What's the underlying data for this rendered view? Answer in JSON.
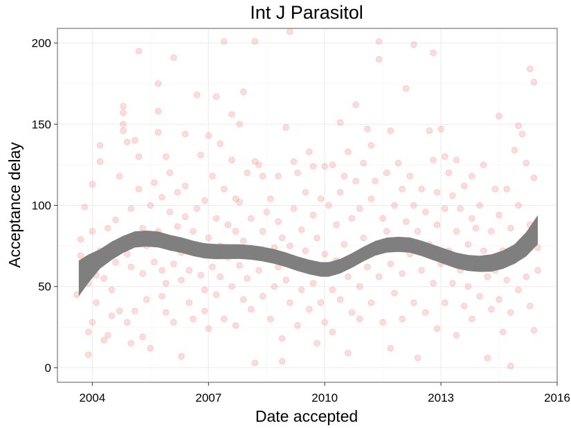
{
  "chart_data": {
    "type": "scatter",
    "title": "Int J Parasitol",
    "xlabel": "Date accepted",
    "ylabel": "Acceptance delay",
    "xlim": [
      2003.1,
      2016.0
    ],
    "ylim": [
      -9,
      209
    ],
    "x_ticks": [
      {
        "value": 2004,
        "label": "2004"
      },
      {
        "value": 2007,
        "label": "2007"
      },
      {
        "value": 2010,
        "label": "2010"
      },
      {
        "value": 2013,
        "label": "2013"
      },
      {
        "value": 2016,
        "label": "2016"
      }
    ],
    "y_ticks": [
      {
        "value": 0,
        "label": "0"
      },
      {
        "value": 50,
        "label": "50"
      },
      {
        "value": 100,
        "label": "100"
      },
      {
        "value": 150,
        "label": "150"
      },
      {
        "value": 200,
        "label": "200"
      }
    ],
    "grid": true,
    "point_color": "#f8766d",
    "point_opacity": 0.25,
    "smooth_color": "#7f7f7f",
    "points": [
      [
        2003.6,
        45
      ],
      [
        2003.7,
        69
      ],
      [
        2003.7,
        79
      ],
      [
        2003.8,
        99
      ],
      [
        2003.8,
        62
      ],
      [
        2003.9,
        8
      ],
      [
        2003.9,
        22
      ],
      [
        2003.9,
        52
      ],
      [
        2004.0,
        113
      ],
      [
        2004.0,
        28
      ],
      [
        2004.0,
        84
      ],
      [
        2004.1,
        57
      ],
      [
        2004.1,
        40
      ],
      [
        2004.2,
        137
      ],
      [
        2004.2,
        127
      ],
      [
        2004.2,
        72
      ],
      [
        2004.3,
        55
      ],
      [
        2004.3,
        17
      ],
      [
        2004.4,
        20
      ],
      [
        2004.4,
        86
      ],
      [
        2004.5,
        48
      ],
      [
        2004.5,
        32
      ],
      [
        2004.6,
        65
      ],
      [
        2004.6,
        91
      ],
      [
        2004.7,
        118
      ],
      [
        2004.7,
        35
      ],
      [
        2004.8,
        161
      ],
      [
        2004.8,
        157
      ],
      [
        2004.8,
        150
      ],
      [
        2004.8,
        146
      ],
      [
        2004.9,
        28
      ],
      [
        2004.9,
        70
      ],
      [
        2004.9,
        139
      ],
      [
        2005.0,
        98
      ],
      [
        2005.0,
        15
      ],
      [
        2005.0,
        62
      ],
      [
        2005.1,
        140
      ],
      [
        2005.1,
        35
      ],
      [
        2005.2,
        195
      ],
      [
        2005.2,
        130
      ],
      [
        2005.2,
        110
      ],
      [
        2005.3,
        58
      ],
      [
        2005.3,
        86
      ],
      [
        2005.3,
        19
      ],
      [
        2005.4,
        42
      ],
      [
        2005.4,
        75
      ],
      [
        2005.5,
        100
      ],
      [
        2005.5,
        12
      ],
      [
        2005.6,
        114
      ],
      [
        2005.6,
        65
      ],
      [
        2005.7,
        175
      ],
      [
        2005.7,
        145
      ],
      [
        2005.7,
        158
      ],
      [
        2005.7,
        84
      ],
      [
        2005.8,
        105
      ],
      [
        2005.8,
        60
      ],
      [
        2005.8,
        44
      ],
      [
        2005.9,
        130
      ],
      [
        2005.9,
        52
      ],
      [
        2005.9,
        34
      ],
      [
        2006.0,
        120
      ],
      [
        2006.0,
        77
      ],
      [
        2006.0,
        96
      ],
      [
        2006.1,
        191
      ],
      [
        2006.1,
        64
      ],
      [
        2006.1,
        28
      ],
      [
        2006.2,
        108
      ],
      [
        2006.2,
        87
      ],
      [
        2006.3,
        7
      ],
      [
        2006.3,
        54
      ],
      [
        2006.3,
        71
      ],
      [
        2006.4,
        144
      ],
      [
        2006.4,
        112
      ],
      [
        2006.4,
        93
      ],
      [
        2006.5,
        40
      ],
      [
        2006.5,
        60
      ],
      [
        2006.6,
        84
      ],
      [
        2006.6,
        30
      ],
      [
        2006.7,
        168
      ],
      [
        2006.7,
        98
      ],
      [
        2006.8,
        57
      ],
      [
        2006.8,
        131
      ],
      [
        2006.8,
        72
      ],
      [
        2006.9,
        48
      ],
      [
        2006.9,
        103
      ],
      [
        2006.9,
        35
      ],
      [
        2007.0,
        143
      ],
      [
        2007.0,
        80
      ],
      [
        2007.0,
        24
      ],
      [
        2007.1,
        118
      ],
      [
        2007.1,
        62
      ],
      [
        2007.2,
        167
      ],
      [
        2007.2,
        92
      ],
      [
        2007.2,
        45
      ],
      [
        2007.3,
        138
      ],
      [
        2007.3,
        75
      ],
      [
        2007.3,
        56
      ],
      [
        2007.4,
        201
      ],
      [
        2007.4,
        110
      ],
      [
        2007.4,
        30
      ],
      [
        2007.5,
        88
      ],
      [
        2007.5,
        68
      ],
      [
        2007.6,
        156
      ],
      [
        2007.6,
        128
      ],
      [
        2007.6,
        50
      ],
      [
        2007.7,
        104
      ],
      [
        2007.7,
        84
      ],
      [
        2007.7,
        26
      ],
      [
        2007.8,
        150
      ],
      [
        2007.8,
        102
      ],
      [
        2007.8,
        63
      ],
      [
        2007.9,
        170
      ],
      [
        2007.9,
        42
      ],
      [
        2007.9,
        78
      ],
      [
        2008.0,
        120
      ],
      [
        2008.0,
        55
      ],
      [
        2008.1,
        92
      ],
      [
        2008.1,
        36
      ],
      [
        2008.1,
        70
      ],
      [
        2008.2,
        201
      ],
      [
        2008.2,
        127
      ],
      [
        2008.2,
        3
      ],
      [
        2008.3,
        125
      ],
      [
        2008.3,
        60
      ],
      [
        2008.4,
        84
      ],
      [
        2008.4,
        118
      ],
      [
        2008.4,
        44
      ],
      [
        2008.5,
        96
      ],
      [
        2008.5,
        68
      ],
      [
        2008.6,
        104
      ],
      [
        2008.6,
        30
      ],
      [
        2008.7,
        74
      ],
      [
        2008.7,
        50
      ],
      [
        2008.8,
        118
      ],
      [
        2008.8,
        90
      ],
      [
        2008.8,
        62
      ],
      [
        2008.9,
        4
      ],
      [
        2008.9,
        18
      ],
      [
        2008.9,
        80
      ],
      [
        2009.0,
        148
      ],
      [
        2009.0,
        54
      ],
      [
        2009.1,
        207
      ],
      [
        2009.1,
        75
      ],
      [
        2009.1,
        40
      ],
      [
        2009.2,
        127
      ],
      [
        2009.2,
        98
      ],
      [
        2009.3,
        120
      ],
      [
        2009.3,
        65
      ],
      [
        2009.3,
        26
      ],
      [
        2009.4,
        85
      ],
      [
        2009.4,
        48
      ],
      [
        2009.5,
        108
      ],
      [
        2009.5,
        72
      ],
      [
        2009.6,
        133
      ],
      [
        2009.6,
        60
      ],
      [
        2009.6,
        36
      ],
      [
        2009.7,
        124
      ],
      [
        2009.7,
        94
      ],
      [
        2009.7,
        52
      ],
      [
        2009.8,
        80
      ],
      [
        2009.8,
        15
      ],
      [
        2009.9,
        104
      ],
      [
        2009.9,
        58
      ],
      [
        2009.9,
        40
      ],
      [
        2010.0,
        124
      ],
      [
        2010.0,
        70
      ],
      [
        2010.0,
        28
      ],
      [
        2010.1,
        100
      ],
      [
        2010.1,
        60
      ],
      [
        2010.2,
        125
      ],
      [
        2010.2,
        48
      ],
      [
        2010.2,
        22
      ],
      [
        2010.3,
        88
      ],
      [
        2010.3,
        66
      ],
      [
        2010.4,
        151
      ],
      [
        2010.4,
        108
      ],
      [
        2010.4,
        42
      ],
      [
        2010.5,
        118
      ],
      [
        2010.5,
        76
      ],
      [
        2010.6,
        133
      ],
      [
        2010.6,
        9
      ],
      [
        2010.6,
        56
      ],
      [
        2010.7,
        92
      ],
      [
        2010.7,
        34
      ],
      [
        2010.8,
        162
      ],
      [
        2010.8,
        115
      ],
      [
        2010.8,
        68
      ],
      [
        2010.9,
        98
      ],
      [
        2010.9,
        50
      ],
      [
        2010.9,
        30
      ],
      [
        2011.0,
        126
      ],
      [
        2011.0,
        80
      ],
      [
        2011.1,
        147
      ],
      [
        2011.1,
        62
      ],
      [
        2011.2,
        137
      ],
      [
        2011.2,
        104
      ],
      [
        2011.2,
        40
      ],
      [
        2011.3,
        115
      ],
      [
        2011.3,
        72
      ],
      [
        2011.4,
        190
      ],
      [
        2011.4,
        201
      ],
      [
        2011.4,
        56
      ],
      [
        2011.5,
        92
      ],
      [
        2011.5,
        28
      ],
      [
        2011.6,
        120
      ],
      [
        2011.6,
        84
      ],
      [
        2011.7,
        146
      ],
      [
        2011.7,
        64
      ],
      [
        2011.7,
        12
      ],
      [
        2011.8,
        100
      ],
      [
        2011.8,
        46
      ],
      [
        2011.9,
        126
      ],
      [
        2011.9,
        74
      ],
      [
        2012.0,
        110
      ],
      [
        2012.0,
        58
      ],
      [
        2012.0,
        30
      ],
      [
        2012.1,
        172
      ],
      [
        2012.1,
        90
      ],
      [
        2012.2,
        118
      ],
      [
        2012.2,
        70
      ],
      [
        2012.3,
        199
      ],
      [
        2012.3,
        100
      ],
      [
        2012.3,
        40
      ],
      [
        2012.4,
        84
      ],
      [
        2012.4,
        6
      ],
      [
        2012.5,
        110
      ],
      [
        2012.5,
        60
      ],
      [
        2012.6,
        96
      ],
      [
        2012.6,
        34
      ],
      [
        2012.7,
        146
      ],
      [
        2012.7,
        76
      ],
      [
        2012.8,
        194
      ],
      [
        2012.8,
        128
      ],
      [
        2012.8,
        52
      ],
      [
        2012.9,
        108
      ],
      [
        2012.9,
        88
      ],
      [
        2012.9,
        24
      ],
      [
        2013.0,
        147
      ],
      [
        2013.0,
        64
      ],
      [
        2013.1,
        130
      ],
      [
        2013.1,
        98
      ],
      [
        2013.1,
        40
      ],
      [
        2013.2,
        120
      ],
      [
        2013.2,
        72
      ],
      [
        2013.3,
        106
      ],
      [
        2013.3,
        52
      ],
      [
        2013.4,
        128
      ],
      [
        2013.4,
        84
      ],
      [
        2013.4,
        20
      ],
      [
        2013.5,
        98
      ],
      [
        2013.5,
        60
      ],
      [
        2013.6,
        112
      ],
      [
        2013.6,
        38
      ],
      [
        2013.7,
        76
      ],
      [
        2013.7,
        50
      ],
      [
        2013.8,
        118
      ],
      [
        2013.8,
        92
      ],
      [
        2013.8,
        30
      ],
      [
        2013.9,
        86
      ],
      [
        2013.9,
        64
      ],
      [
        2014.0,
        100
      ],
      [
        2014.0,
        44
      ],
      [
        2014.1,
        125
      ],
      [
        2014.1,
        72
      ],
      [
        2014.2,
        6
      ],
      [
        2014.2,
        56
      ],
      [
        2014.3,
        84
      ],
      [
        2014.3,
        36
      ],
      [
        2014.4,
        110
      ],
      [
        2014.4,
        60
      ],
      [
        2014.5,
        155
      ],
      [
        2014.5,
        94
      ],
      [
        2014.5,
        42
      ],
      [
        2014.6,
        72
      ],
      [
        2014.6,
        22
      ],
      [
        2014.7,
        110
      ],
      [
        2014.7,
        54
      ],
      [
        2014.8,
        1
      ],
      [
        2014.8,
        86
      ],
      [
        2014.8,
        34
      ],
      [
        2014.9,
        134
      ],
      [
        2014.9,
        66
      ],
      [
        2015.0,
        149
      ],
      [
        2015.0,
        100
      ],
      [
        2015.0,
        48
      ],
      [
        2015.1,
        144
      ],
      [
        2015.1,
        76
      ],
      [
        2015.2,
        126
      ],
      [
        2015.2,
        56
      ],
      [
        2015.3,
        184
      ],
      [
        2015.3,
        88
      ],
      [
        2015.3,
        38
      ],
      [
        2015.4,
        176
      ],
      [
        2015.4,
        117
      ],
      [
        2015.4,
        23
      ],
      [
        2015.5,
        74
      ],
      [
        2015.5,
        60
      ]
    ],
    "smooth": [
      [
        2003.65,
        55
      ],
      [
        2003.9,
        61
      ],
      [
        2004.2,
        67
      ],
      [
        2004.5,
        72
      ],
      [
        2004.8,
        76
      ],
      [
        2005.1,
        79
      ],
      [
        2005.4,
        79.5
      ],
      [
        2005.7,
        79
      ],
      [
        2006.0,
        77
      ],
      [
        2006.3,
        75.5
      ],
      [
        2006.6,
        73.5
      ],
      [
        2006.9,
        72
      ],
      [
        2007.2,
        71.5
      ],
      [
        2007.5,
        71.5
      ],
      [
        2007.8,
        71.5
      ],
      [
        2008.1,
        71
      ],
      [
        2008.4,
        70
      ],
      [
        2008.7,
        68.5
      ],
      [
        2009.0,
        66.5
      ],
      [
        2009.3,
        64
      ],
      [
        2009.6,
        62
      ],
      [
        2009.9,
        60.5
      ],
      [
        2010.1,
        60.5
      ],
      [
        2010.4,
        62.5
      ],
      [
        2010.7,
        66
      ],
      [
        2011.0,
        70
      ],
      [
        2011.3,
        73.5
      ],
      [
        2011.6,
        75.5
      ],
      [
        2011.9,
        76
      ],
      [
        2012.2,
        75.5
      ],
      [
        2012.5,
        73.5
      ],
      [
        2012.8,
        71
      ],
      [
        2013.1,
        68.5
      ],
      [
        2013.4,
        66
      ],
      [
        2013.7,
        64.5
      ],
      [
        2014.0,
        64
      ],
      [
        2014.3,
        64.5
      ],
      [
        2014.6,
        66.5
      ],
      [
        2014.9,
        70
      ],
      [
        2015.2,
        76
      ],
      [
        2015.5,
        85
      ]
    ],
    "smooth_halfwidth": [
      [
        2003.65,
        11
      ],
      [
        2004.2,
        6
      ],
      [
        2005.0,
        5
      ],
      [
        2008.0,
        4.5
      ],
      [
        2011.0,
        4.5
      ],
      [
        2014.0,
        5
      ],
      [
        2014.9,
        6
      ],
      [
        2015.5,
        9
      ]
    ]
  }
}
